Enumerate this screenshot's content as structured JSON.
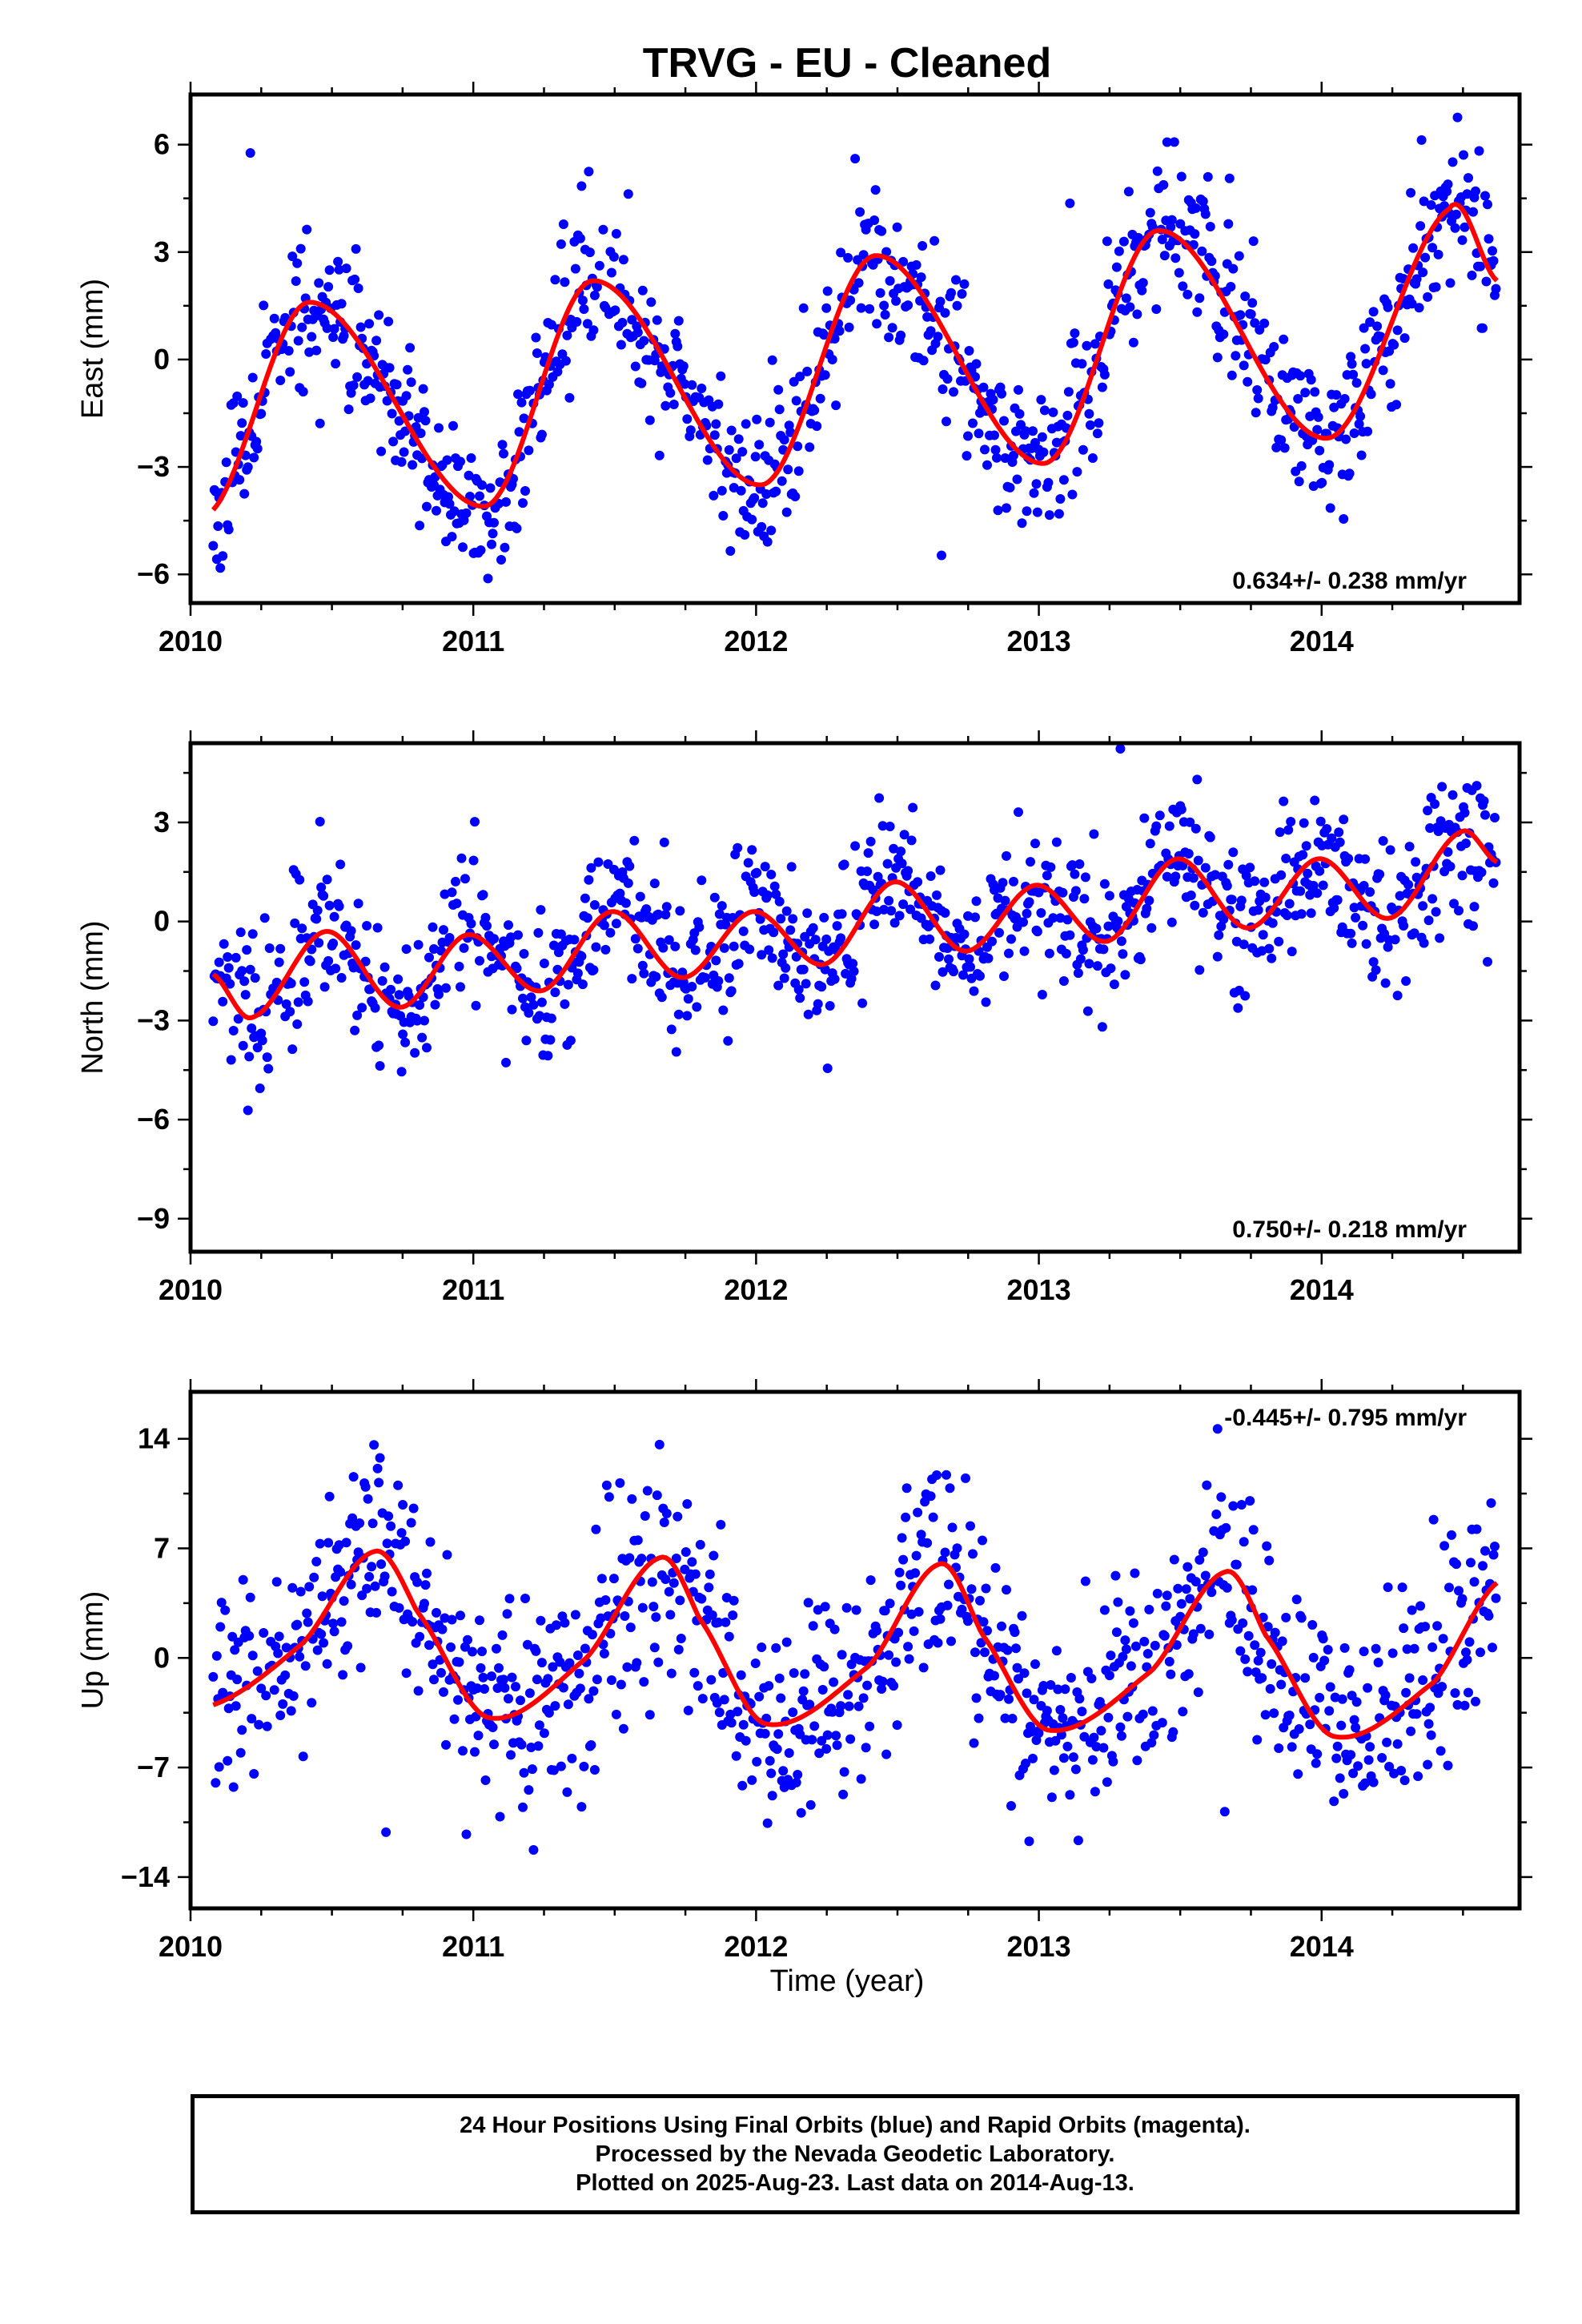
{
  "title": "TRVG  - EU - Cleaned",
  "xlabel": "Time (year)",
  "colors": {
    "points": "#0000ff",
    "fit": "#ff0000",
    "frame": "#000000"
  },
  "caption": {
    "line1": "24 Hour Positions Using Final Orbits (blue) and Rapid Orbits (magenta).",
    "line2": "Processed by the Nevada Geodetic Laboratory.",
    "line3": "Plotted on 2025-Aug-23. Last data on 2014-Aug-13."
  },
  "chart_data": [
    {
      "type": "scatter",
      "component": "east",
      "ylabel": "East (mm)",
      "velocity_label": "0.634+/- 0.238 mm/yr",
      "velocity_label_position": "bottom-right",
      "xlim": [
        2010.0,
        2014.7
      ],
      "ylim": [
        -6.8,
        7.4
      ],
      "xticks": [
        2010,
        2011,
        2012,
        2013,
        2014
      ],
      "yticks": [
        -6,
        -3,
        0,
        3,
        6
      ],
      "grid": false,
      "series": [
        {
          "kind": "daily-positions",
          "marker": "dot",
          "color": "#0000ff",
          "x_range": [
            2010.08,
            2014.62
          ],
          "noise_sd_mm": 1.05,
          "seed": 11
        },
        {
          "kind": "trend-plus-annual-fit",
          "color": "#ff0000",
          "fit_points": [
            [
              2010.08,
              -4.2
            ],
            [
              2010.42,
              1.6
            ],
            [
              2011.04,
              -4.1
            ],
            [
              2011.42,
              2.2
            ],
            [
              2012.02,
              -3.5
            ],
            [
              2012.42,
              2.9
            ],
            [
              2013.02,
              -2.9
            ],
            [
              2013.42,
              3.6
            ],
            [
              2014.02,
              -2.2
            ],
            [
              2014.45,
              4.2
            ],
            [
              2014.62,
              2.2
            ]
          ]
        }
      ]
    },
    {
      "type": "scatter",
      "component": "north",
      "ylabel": "North (mm)",
      "velocity_label": "0.750+/- 0.218 mm/yr",
      "velocity_label_position": "bottom-right",
      "xlim": [
        2010.0,
        2014.7
      ],
      "ylim": [
        -10.0,
        5.4
      ],
      "xticks": [
        2010,
        2011,
        2012,
        2013,
        2014
      ],
      "yticks": [
        -9,
        -6,
        -3,
        0,
        3
      ],
      "grid": false,
      "series": [
        {
          "kind": "daily-positions",
          "marker": "dot",
          "color": "#0000ff",
          "x_range": [
            2010.08,
            2014.62
          ],
          "noise_sd_mm": 1.1,
          "seed": 23
        },
        {
          "kind": "trend-plus-annual-fit",
          "color": "#ff0000",
          "fit_points": [
            [
              2010.08,
              -1.6
            ],
            [
              2010.22,
              -2.9
            ],
            [
              2010.48,
              -0.3
            ],
            [
              2010.74,
              -2.6
            ],
            [
              2010.98,
              -0.4
            ],
            [
              2011.24,
              -2.1
            ],
            [
              2011.49,
              0.3
            ],
            [
              2011.74,
              -1.7
            ],
            [
              2011.99,
              0.3
            ],
            [
              2012.24,
              -1.3
            ],
            [
              2012.49,
              1.2
            ],
            [
              2012.74,
              -0.9
            ],
            [
              2012.99,
              1.1
            ],
            [
              2013.24,
              -0.6
            ],
            [
              2013.49,
              1.9
            ],
            [
              2013.74,
              -0.2
            ],
            [
              2013.99,
              1.9
            ],
            [
              2014.24,
              0.1
            ],
            [
              2014.49,
              2.7
            ],
            [
              2014.62,
              1.8
            ]
          ]
        }
      ]
    },
    {
      "type": "scatter",
      "component": "up",
      "ylabel": "Up (mm)",
      "velocity_label": "-0.445+/- 0.795 mm/yr",
      "velocity_label_position": "top-right",
      "xlim": [
        2010.0,
        2014.7
      ],
      "ylim": [
        -16.0,
        17.0
      ],
      "xticks": [
        2010,
        2011,
        2012,
        2013,
        2014
      ],
      "yticks": [
        -14,
        -7,
        0,
        7,
        14
      ],
      "grid": false,
      "series": [
        {
          "kind": "daily-positions",
          "marker": "dot",
          "color": "#0000ff",
          "x_range": [
            2010.08,
            2014.62
          ],
          "noise_sd_mm": 3.3,
          "seed": 37
        },
        {
          "kind": "trend-plus-annual-fit",
          "color": "#ff0000",
          "fit_points": [
            [
              2010.08,
              -3.0
            ],
            [
              2010.4,
              1.0
            ],
            [
              2010.65,
              6.8
            ],
            [
              2010.8,
              3.0
            ],
            [
              2011.05,
              -3.8
            ],
            [
              2011.4,
              0.0
            ],
            [
              2011.66,
              6.4
            ],
            [
              2011.8,
              2.5
            ],
            [
              2012.03,
              -4.2
            ],
            [
              2012.4,
              -0.5
            ],
            [
              2012.65,
              6.0
            ],
            [
              2012.8,
              1.5
            ],
            [
              2013.03,
              -4.6
            ],
            [
              2013.4,
              -0.8
            ],
            [
              2013.66,
              5.5
            ],
            [
              2013.8,
              1.5
            ],
            [
              2014.04,
              -5.0
            ],
            [
              2014.4,
              -1.5
            ],
            [
              2014.62,
              4.8
            ]
          ]
        }
      ]
    }
  ]
}
